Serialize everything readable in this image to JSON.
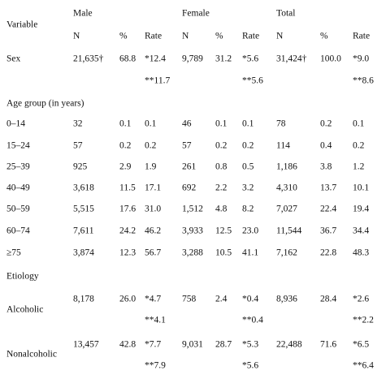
{
  "header": {
    "variable": "Variable",
    "groups": [
      "Male",
      "Female",
      "Total"
    ],
    "columns": [
      "N",
      "%",
      "Rate",
      "N",
      "%",
      "Rate",
      "N",
      "%",
      "Rate"
    ]
  },
  "sex": {
    "label": "Sex",
    "values": [
      "21,635†",
      "68.8",
      "*12.4",
      "9,789",
      "31.2",
      "*5.6",
      "31,424†",
      "100.0",
      "*9.0"
    ],
    "rates2": [
      "**11.7",
      "**5.6",
      "**8.6"
    ]
  },
  "age_group": {
    "label": "Age group (in years)",
    "rows": [
      {
        "label": "0–14",
        "values": [
          "32",
          "0.1",
          "0.1",
          "46",
          "0.1",
          "0.1",
          "78",
          "0.2",
          "0.1"
        ]
      },
      {
        "label": "15–24",
        "values": [
          "57",
          "0.2",
          "0.2",
          "57",
          "0.2",
          "0.2",
          "114",
          "0.4",
          "0.2"
        ]
      },
      {
        "label": "25–39",
        "values": [
          "925",
          "2.9",
          "1.9",
          "261",
          "0.8",
          "0.5",
          "1,186",
          "3.8",
          "1.2"
        ]
      },
      {
        "label": "40–49",
        "values": [
          "3,618",
          "11.5",
          "17.1",
          "692",
          "2.2",
          "3.2",
          "4,310",
          "13.7",
          "10.1"
        ]
      },
      {
        "label": "50–59",
        "values": [
          "5,515",
          "17.6",
          "31.0",
          "1,512",
          "4.8",
          "8.2",
          "7,027",
          "22.4",
          "19.4"
        ]
      },
      {
        "label": "60–74",
        "values": [
          "7,611",
          "24.2",
          "46.2",
          "3,933",
          "12.5",
          "23.0",
          "11,544",
          "36.7",
          "34.4"
        ]
      },
      {
        "label": "≥75",
        "values": [
          "3,874",
          "12.3",
          "56.7",
          "3,288",
          "10.5",
          "41.1",
          "7,162",
          "22.8",
          "48.3"
        ]
      }
    ]
  },
  "etiology": {
    "label": "Etiology",
    "rows": [
      {
        "label": "Alcoholic",
        "values": [
          "8,178",
          "26.0",
          "*4.7",
          "758",
          "2.4",
          "*0.4",
          "8,936",
          "28.4",
          "*2.6"
        ],
        "rates2": [
          "**4.1",
          "**0.4",
          "**2.2"
        ]
      },
      {
        "label": "Nonalcoholic",
        "values": [
          "13,457",
          "42.8",
          "*7.7",
          "9,031",
          "28.7",
          "*5.3",
          "22,488",
          "71.6",
          "*6.5"
        ],
        "rates2": [
          "**7.9",
          "*5.6",
          "**6.4"
        ]
      }
    ]
  }
}
